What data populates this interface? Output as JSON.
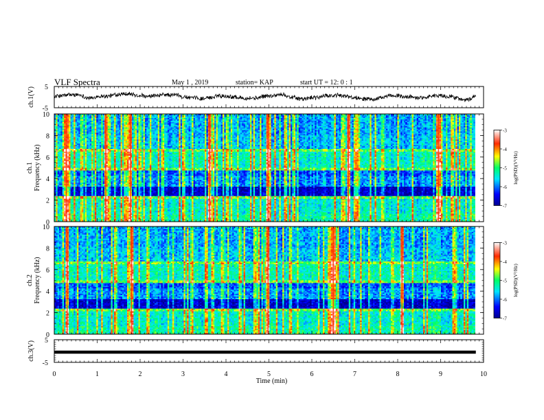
{
  "header": {
    "title": "VLF Spectra",
    "date": "May 1 , 2019",
    "station": "station= KAP",
    "start_time": "start UT = 12: 0 : 1"
  },
  "chart_data": [
    {
      "type": "line",
      "panel": "ch1-waveform",
      "ylabel": "ch.1(V)",
      "ylim": [
        -5,
        5
      ],
      "yticks": [
        "5",
        "-5"
      ],
      "xlim": [
        0,
        10
      ],
      "baseline": 0.2,
      "amplitude": 0.9
    },
    {
      "type": "heatmap",
      "panel": "ch1-spectrogram",
      "ylabel": "Frequency (kHz)",
      "ylabel2": "ch.1",
      "ylim": [
        0,
        10
      ],
      "yticks": [
        "0",
        "2",
        "4",
        "6",
        "8",
        "10"
      ],
      "xlim": [
        0,
        9.8
      ],
      "strong_lines_min": [
        0.28,
        1.2,
        1.78,
        3.62,
        4.98,
        6.85,
        8.95
      ],
      "colorbar": {
        "label": "log(PSD)(V²/Hz)",
        "ticks": [
          "-3",
          "-4",
          "-5",
          "-6",
          "-7"
        ],
        "range": [
          -7,
          -3
        ]
      }
    },
    {
      "type": "heatmap",
      "panel": "ch2-spectrogram",
      "ylabel": "Frequency (kHz)",
      "ylabel2": "ch.2",
      "ylim": [
        0,
        10
      ],
      "yticks": [
        "0",
        "2",
        "4",
        "6",
        "8",
        "10"
      ],
      "xlim": [
        0,
        9.8
      ],
      "strong_lines_min": [
        0.3,
        1.8,
        4.98,
        6.5,
        8.1
      ],
      "colorbar": {
        "label": "log(PSD)(V²/Hz)",
        "ticks": [
          "-3",
          "-4",
          "-5",
          "-6",
          "-7"
        ],
        "range": [
          -7,
          -3
        ]
      }
    },
    {
      "type": "line",
      "panel": "ch3-waveform",
      "ylabel": "ch.3(V)",
      "ylim": [
        -5,
        5
      ],
      "yticks": [
        "5",
        "-5"
      ],
      "xlim": [
        0,
        10
      ],
      "xlabel": "Time (min)",
      "xticks": [
        "0",
        "1",
        "2",
        "3",
        "4",
        "5",
        "6",
        "7",
        "8",
        "9",
        "10"
      ],
      "constant_value": -0.5
    }
  ]
}
